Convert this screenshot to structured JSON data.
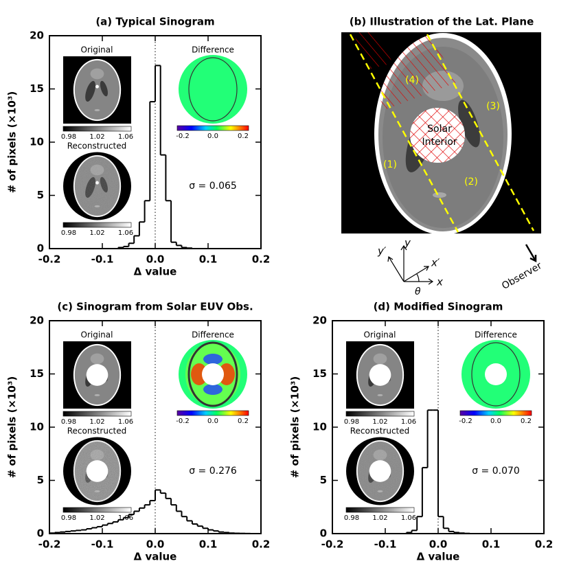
{
  "chart_data": [
    {
      "type": "histogram",
      "title": "(a) Typical Sinogram",
      "xlabel": "Δ value",
      "ylabel": "# of pixels (×10³)",
      "bins": [
        -0.07,
        -0.06,
        -0.05,
        -0.04,
        -0.03,
        -0.02,
        -0.01,
        0,
        0.01,
        0.02,
        0.03,
        0.04,
        0.05,
        0.06,
        0.07
      ],
      "values": [
        0.1,
        0.2,
        0.5,
        1.2,
        2.5,
        4.5,
        13.8,
        17.2,
        8.8,
        4.5,
        0.6,
        0.3,
        0.1,
        0.05
      ],
      "color": "#000000",
      "xlim": [
        -0.2,
        0.2
      ],
      "ylim": [
        0,
        20
      ],
      "xticks": [
        -0.2,
        -0.1,
        {
          "value": 0,
          "label": "0.0"
        },
        0.1,
        0.2
      ],
      "yticks": [
        0,
        5,
        10,
        15,
        20
      ],
      "annotation": "σ = 0.065",
      "insets": {
        "original": {
          "title": "Original",
          "colorbar_ticks": [
            "0.98",
            "1.02",
            "1.06"
          ]
        },
        "reconstructed": {
          "title": "Reconstructed",
          "colorbar_ticks": [
            "0.98",
            "1.02",
            "1.06"
          ]
        },
        "difference": {
          "title": "Difference",
          "colorbar_ticks": [
            "-0.2",
            "0.0",
            "0.2"
          ]
        }
      }
    },
    {
      "type": "histogram",
      "title": "(c) Sinogram from Solar EUV Obs.",
      "xlabel": "Δ value",
      "ylabel": "# of pixels (×10³)",
      "bins": [
        -0.2,
        -0.19,
        -0.18,
        -0.17,
        -0.16,
        -0.15,
        -0.14,
        -0.13,
        -0.12,
        -0.11,
        -0.1,
        -0.09,
        -0.08,
        -0.07,
        -0.06,
        -0.05,
        -0.04,
        -0.03,
        -0.02,
        -0.01,
        0,
        0.01,
        0.02,
        0.03,
        0.04,
        0.05,
        0.06,
        0.07,
        0.08,
        0.09,
        0.1,
        0.11,
        0.12,
        0.13,
        0.14,
        0.15,
        0.16,
        0.17,
        0.18,
        0.19,
        0.2
      ],
      "values": [
        0.05,
        0.1,
        0.15,
        0.2,
        0.25,
        0.3,
        0.35,
        0.45,
        0.55,
        0.65,
        0.8,
        0.95,
        1.1,
        1.3,
        1.5,
        1.8,
        2.1,
        2.4,
        2.7,
        3.1,
        4.1,
        3.8,
        3.3,
        2.7,
        2.1,
        1.6,
        1.2,
        0.9,
        0.7,
        0.5,
        0.35,
        0.25,
        0.15,
        0.1,
        0.05,
        0.03,
        0.02,
        0.01,
        0,
        0
      ],
      "color": "#000000",
      "xlim": [
        -0.2,
        0.2
      ],
      "ylim": [
        0,
        20
      ],
      "xticks": [
        -0.2,
        -0.1,
        {
          "value": 0,
          "label": "0.0"
        },
        0.1,
        0.2
      ],
      "yticks": [
        0,
        5,
        10,
        15,
        20
      ],
      "annotation": "σ = 0.276",
      "insets": {
        "original": {
          "title": "Original",
          "colorbar_ticks": [
            "0.98",
            "1.02",
            "1.06"
          ]
        },
        "reconstructed": {
          "title": "Reconstructed",
          "colorbar_ticks": [
            "0.98",
            "1.02",
            "1.06"
          ]
        },
        "difference": {
          "title": "Difference",
          "colorbar_ticks": [
            "-0.2",
            "0.0",
            "0.2"
          ]
        }
      }
    },
    {
      "type": "histogram",
      "title": "(d) Modified Sinogram",
      "xlabel": "Δ value",
      "ylabel": "# of pixels (×10³)",
      "bins": [
        -0.06,
        -0.05,
        -0.04,
        -0.03,
        -0.02,
        -0.01,
        0,
        0.01,
        0.02,
        0.03,
        0.04,
        0.05,
        0.06
      ],
      "values": [
        0.1,
        0.3,
        1.6,
        6.2,
        11.6,
        11.6,
        1.6,
        0.5,
        0.2,
        0.1,
        0.05,
        0.02
      ],
      "color": "#000000",
      "xlim": [
        -0.2,
        0.2
      ],
      "ylim": [
        0,
        20
      ],
      "xticks": [
        -0.2,
        -0.1,
        {
          "value": 0,
          "label": "0.0"
        },
        0.1,
        0.2
      ],
      "yticks": [
        0,
        5,
        10,
        15,
        20
      ],
      "annotation": "σ = 0.070",
      "insets": {
        "original": {
          "title": "Original",
          "colorbar_ticks": [
            "0.98",
            "1.02",
            "1.06"
          ]
        },
        "reconstructed": {
          "title": "Reconstructed",
          "colorbar_ticks": [
            "0.98",
            "1.02",
            "1.06"
          ]
        },
        "difference": {
          "title": "Difference",
          "colorbar_ticks": [
            "-0.2",
            "0.0",
            "0.2"
          ]
        }
      }
    }
  ],
  "illustration": {
    "title": "(b) Illustration of the Lat. Plane",
    "regions": [
      "(1)",
      "(2)",
      "(3)",
      "(4)"
    ],
    "interior": [
      "Solar",
      "Interior"
    ],
    "axes": {
      "y_prime": "y′",
      "y": "y",
      "x_prime": "x′",
      "x": "x",
      "theta": "θ"
    },
    "observer": "Observer"
  }
}
